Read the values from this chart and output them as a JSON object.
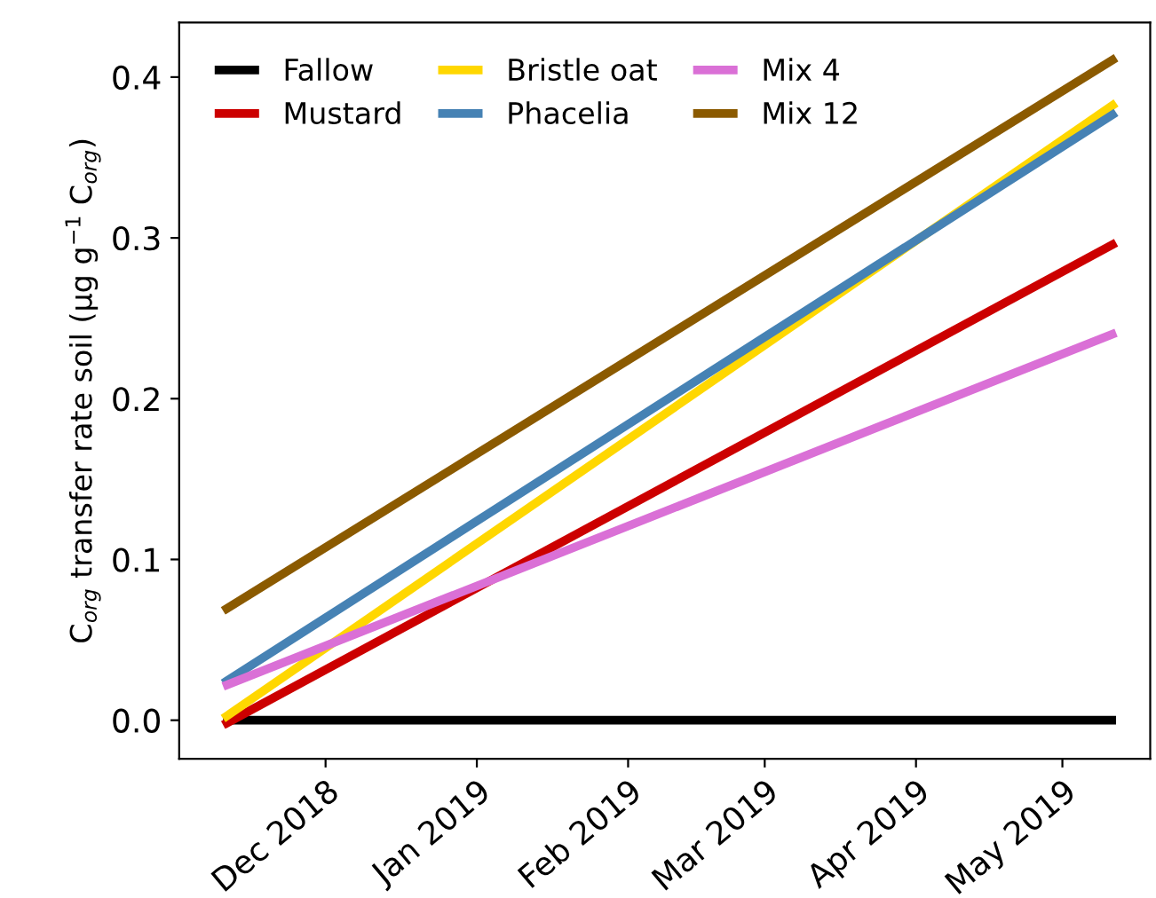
{
  "chart_data": {
    "type": "line",
    "ylabel": "C$_{org}$ transfer rate soil (µg g$^{−1}$ C$_{org}$)",
    "x": [
      "2018-11-10",
      "2019-05-12"
    ],
    "series": [
      {
        "name": "Fallow",
        "color": "#000000",
        "values": [
          0.0,
          0.0
        ]
      },
      {
        "name": "Mustard",
        "color": "#cc0000",
        "values": [
          -0.003,
          0.297
        ]
      },
      {
        "name": "Bristle oat",
        "color": "#ffd700",
        "values": [
          0.001,
          0.384
        ]
      },
      {
        "name": "Phacelia",
        "color": "#4682b4",
        "values": [
          0.023,
          0.378
        ]
      },
      {
        "name": "Mix 4",
        "color": "#da70d6",
        "values": [
          0.021,
          0.241
        ]
      },
      {
        "name": "Mix 12",
        "color": "#8b5a00",
        "values": [
          0.068,
          0.412
        ]
      }
    ],
    "xlim": [
      "2018-11-01",
      "2019-05-19"
    ],
    "xticks": [
      {
        "value": "2018-12-01",
        "label": "Dec 2018"
      },
      {
        "value": "2019-01-01",
        "label": "Jan 2019"
      },
      {
        "value": "2019-02-01",
        "label": "Feb 2019"
      },
      {
        "value": "2019-03-01",
        "label": "Mar 2019"
      },
      {
        "value": "2019-04-01",
        "label": "Apr 2019"
      },
      {
        "value": "2019-05-01",
        "label": "May 2019"
      }
    ],
    "ylim": [
      -0.024,
      0.434
    ],
    "yticks": [
      {
        "value": 0,
        "label": "0.0"
      },
      0.1,
      0.2,
      0.3,
      0.4
    ],
    "legend": "top left",
    "grid": false,
    "line_style": "solid",
    "marker": "none"
  }
}
